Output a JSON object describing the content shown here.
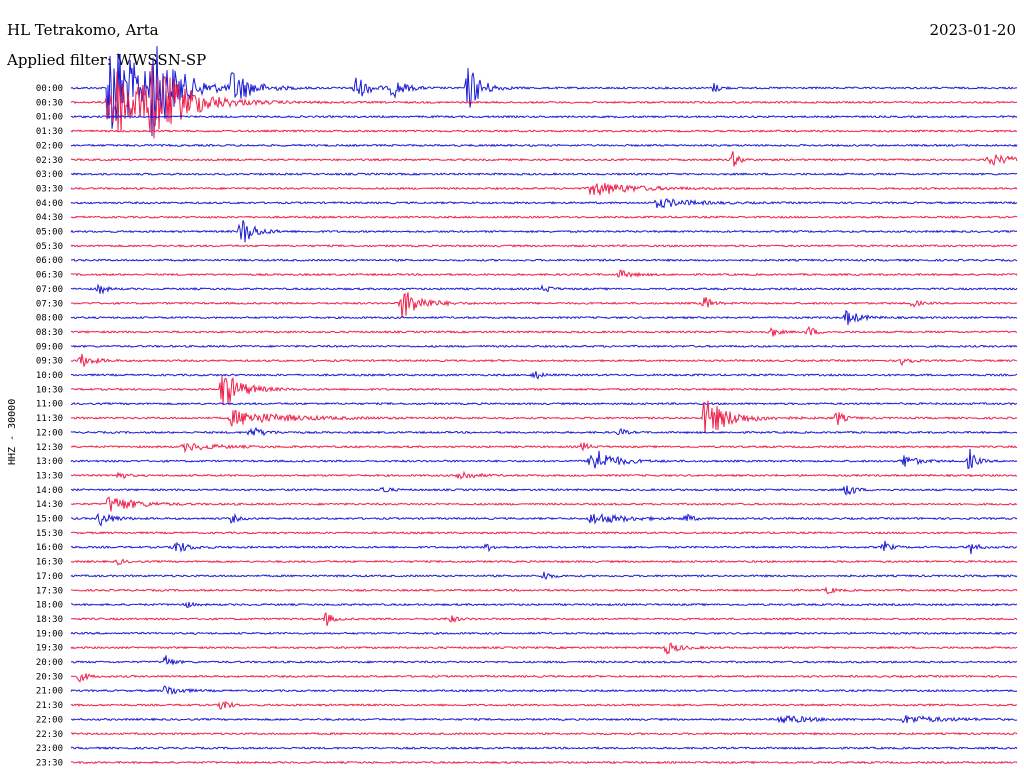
{
  "header": {
    "station": "HL Tetrakomo, Arta",
    "date": "2023-01-20",
    "filter": "Applied filter: WWSSN-SP"
  },
  "scale_label": "HHZ - 30000",
  "colors": {
    "trace_a": "#1a1ad6",
    "trace_b": "#f0204a"
  },
  "chart_data": {
    "type": "line",
    "title": "HL Tetrakomo, Arta",
    "ylabel": "HHZ - 30000",
    "rows": [
      "00:00",
      "00:30",
      "01:00",
      "01:30",
      "02:00",
      "02:30",
      "03:00",
      "03:30",
      "04:00",
      "04:30",
      "05:00",
      "05:30",
      "06:00",
      "06:30",
      "07:00",
      "07:30",
      "08:00",
      "08:30",
      "09:00",
      "09:30",
      "10:00",
      "10:30",
      "11:00",
      "11:30",
      "12:00",
      "12:30",
      "13:00",
      "13:30",
      "14:00",
      "14:30",
      "15:00",
      "15:30",
      "16:00",
      "16:30",
      "17:00",
      "17:30",
      "18:00",
      "18:30",
      "19:00",
      "19:30",
      "20:00",
      "20:30",
      "21:00",
      "21:30",
      "22:00",
      "22:30",
      "23:00",
      "23:30"
    ],
    "events": [
      {
        "row": 0,
        "t": 0.04,
        "amp": 60,
        "dur": 0.05
      },
      {
        "row": 0,
        "t": 0.085,
        "amp": 40,
        "dur": 0.04
      },
      {
        "row": 0,
        "t": 0.17,
        "amp": 18,
        "dur": 0.03
      },
      {
        "row": 0,
        "t": 0.3,
        "amp": 14,
        "dur": 0.02
      },
      {
        "row": 0,
        "t": 0.34,
        "amp": 10,
        "dur": 0.02
      },
      {
        "row": 0,
        "t": 0.42,
        "amp": 25,
        "dur": 0.02
      },
      {
        "row": 0,
        "t": 0.68,
        "amp": 5,
        "dur": 0.01
      },
      {
        "row": 1,
        "t": 0.04,
        "amp": 45,
        "dur": 0.06
      },
      {
        "row": 1,
        "t": 0.085,
        "amp": 35,
        "dur": 0.05
      },
      {
        "row": 5,
        "t": 0.7,
        "amp": 8,
        "dur": 0.01
      },
      {
        "row": 5,
        "t": 0.97,
        "amp": 6,
        "dur": 0.04
      },
      {
        "row": 7,
        "t": 0.55,
        "amp": 8,
        "dur": 0.06
      },
      {
        "row": 8,
        "t": 0.62,
        "amp": 5,
        "dur": 0.05
      },
      {
        "row": 10,
        "t": 0.18,
        "amp": 16,
        "dur": 0.02
      },
      {
        "row": 13,
        "t": 0.58,
        "amp": 4,
        "dur": 0.02
      },
      {
        "row": 14,
        "t": 0.03,
        "amp": 6,
        "dur": 0.01
      },
      {
        "row": 14,
        "t": 0.5,
        "amp": 5,
        "dur": 0.01
      },
      {
        "row": 15,
        "t": 0.35,
        "amp": 16,
        "dur": 0.03
      },
      {
        "row": 15,
        "t": 0.67,
        "amp": 8,
        "dur": 0.01
      },
      {
        "row": 15,
        "t": 0.89,
        "amp": 4,
        "dur": 0.01
      },
      {
        "row": 16,
        "t": 0.82,
        "amp": 8,
        "dur": 0.02
      },
      {
        "row": 17,
        "t": 0.74,
        "amp": 6,
        "dur": 0.01
      },
      {
        "row": 17,
        "t": 0.78,
        "amp": 6,
        "dur": 0.01
      },
      {
        "row": 19,
        "t": 0.01,
        "amp": 7,
        "dur": 0.02
      },
      {
        "row": 19,
        "t": 0.88,
        "amp": 7,
        "dur": 0.01
      },
      {
        "row": 20,
        "t": 0.49,
        "amp": 5,
        "dur": 0.01
      },
      {
        "row": 21,
        "t": 0.16,
        "amp": 20,
        "dur": 0.03
      },
      {
        "row": 23,
        "t": 0.17,
        "amp": 8,
        "dur": 0.08
      },
      {
        "row": 23,
        "t": 0.67,
        "amp": 20,
        "dur": 0.04
      },
      {
        "row": 23,
        "t": 0.81,
        "amp": 8,
        "dur": 0.01
      },
      {
        "row": 24,
        "t": 0.19,
        "amp": 6,
        "dur": 0.02
      },
      {
        "row": 24,
        "t": 0.58,
        "amp": 4,
        "dur": 0.01
      },
      {
        "row": 25,
        "t": 0.12,
        "amp": 4,
        "dur": 0.05
      },
      {
        "row": 25,
        "t": 0.54,
        "amp": 5,
        "dur": 0.01
      },
      {
        "row": 26,
        "t": 0.55,
        "amp": 16,
        "dur": 0.03
      },
      {
        "row": 26,
        "t": 0.88,
        "amp": 7,
        "dur": 0.02
      },
      {
        "row": 26,
        "t": 0.95,
        "amp": 12,
        "dur": 0.01
      },
      {
        "row": 27,
        "t": 0.05,
        "amp": 5,
        "dur": 0.01
      },
      {
        "row": 27,
        "t": 0.41,
        "amp": 6,
        "dur": 0.02
      },
      {
        "row": 28,
        "t": 0.33,
        "amp": 4,
        "dur": 0.01
      },
      {
        "row": 28,
        "t": 0.82,
        "amp": 10,
        "dur": 0.01
      },
      {
        "row": 29,
        "t": 0.04,
        "amp": 9,
        "dur": 0.04
      },
      {
        "row": 30,
        "t": 0.03,
        "amp": 8,
        "dur": 0.02
      },
      {
        "row": 30,
        "t": 0.17,
        "amp": 5,
        "dur": 0.01
      },
      {
        "row": 30,
        "t": 0.55,
        "amp": 6,
        "dur": 0.05
      },
      {
        "row": 30,
        "t": 0.65,
        "amp": 5,
        "dur": 0.01
      },
      {
        "row": 32,
        "t": 0.11,
        "amp": 7,
        "dur": 0.02
      },
      {
        "row": 32,
        "t": 0.44,
        "amp": 4,
        "dur": 0.01
      },
      {
        "row": 32,
        "t": 0.86,
        "amp": 6,
        "dur": 0.01
      },
      {
        "row": 32,
        "t": 0.95,
        "amp": 8,
        "dur": 0.01
      },
      {
        "row": 33,
        "t": 0.05,
        "amp": 3,
        "dur": 0.01
      },
      {
        "row": 34,
        "t": 0.5,
        "amp": 5,
        "dur": 0.01
      },
      {
        "row": 35,
        "t": 0.8,
        "amp": 4,
        "dur": 0.01
      },
      {
        "row": 36,
        "t": 0.12,
        "amp": 4,
        "dur": 0.01
      },
      {
        "row": 37,
        "t": 0.27,
        "amp": 7,
        "dur": 0.01
      },
      {
        "row": 37,
        "t": 0.4,
        "amp": 5,
        "dur": 0.01
      },
      {
        "row": 39,
        "t": 0.63,
        "amp": 6,
        "dur": 0.02
      },
      {
        "row": 40,
        "t": 0.1,
        "amp": 8,
        "dur": 0.01
      },
      {
        "row": 41,
        "t": 0.01,
        "amp": 6,
        "dur": 0.01
      },
      {
        "row": 42,
        "t": 0.1,
        "amp": 6,
        "dur": 0.02
      },
      {
        "row": 43,
        "t": 0.16,
        "amp": 8,
        "dur": 0.01
      },
      {
        "row": 44,
        "t": 0.75,
        "amp": 5,
        "dur": 0.04
      },
      {
        "row": 44,
        "t": 0.88,
        "amp": 4,
        "dur": 0.06
      }
    ]
  }
}
